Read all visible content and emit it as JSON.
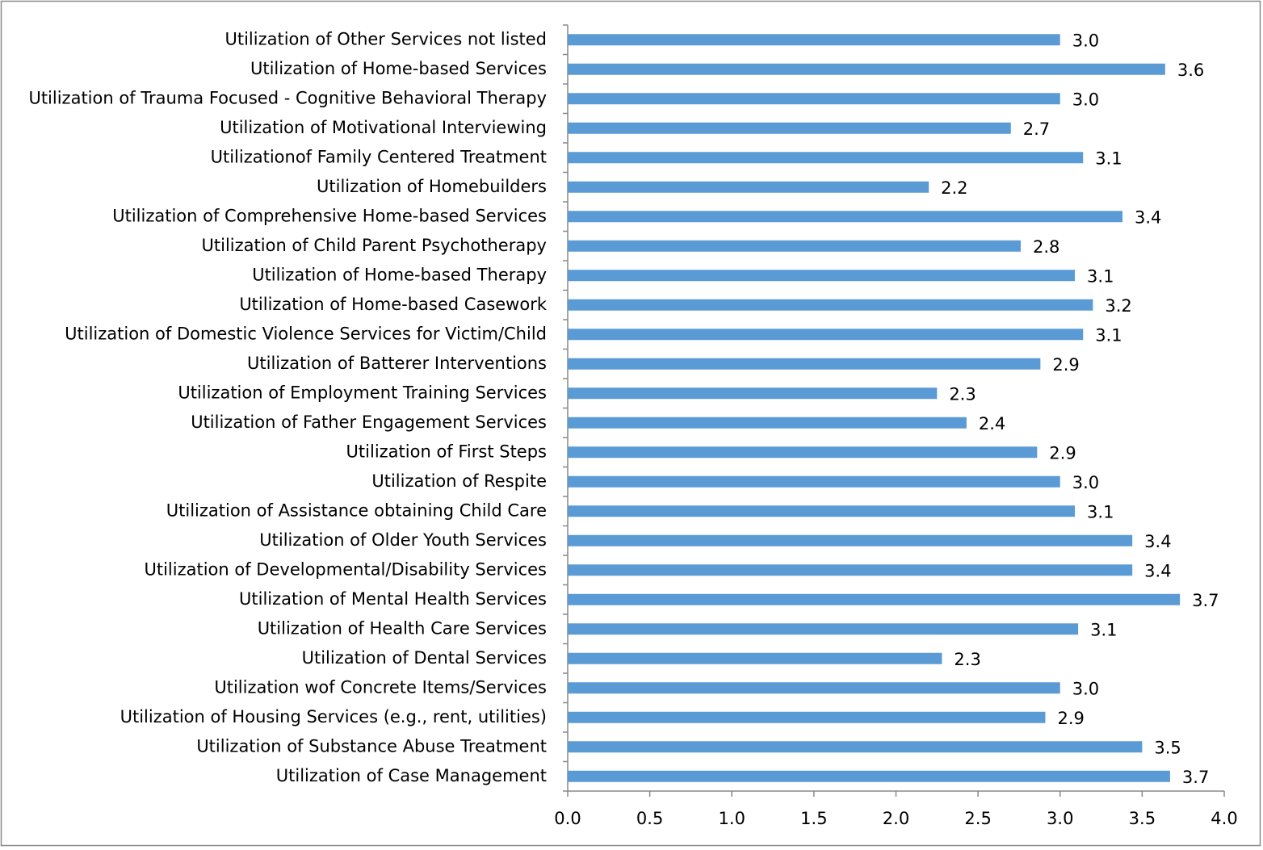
{
  "chart_data": {
    "type": "barh",
    "categories": [
      "Utilization of Other Services not listed",
      "Utilization of Home-based Services",
      "Utilization of Trauma Focused - Cognitive Behavioral Therapy",
      "Utilization of Motivational Interviewing",
      "Utilizationof Family Centered Treatment",
      "Utilization of Homebuilders",
      "Utilization of Comprehensive Home-based Services",
      "Utilization of Child Parent Psychotherapy",
      "Utilization of Home-based Therapy",
      "Utilization of Home-based Casework",
      "Utilization of Domestic Violence Services for Victim/Child",
      "Utilization of Batterer Interventions",
      "Utilization of Employment Training Services",
      "Utilization of Father Engagement Services",
      "Utilization of First Steps",
      "Utilization of Respite",
      "Utilization of Assistance obtaining Child Care",
      "Utilization of Older Youth Services",
      "Utilization of Developmental/Disability Services",
      "Utilization of Mental Health Services",
      "Utilization of Health Care Services",
      "Utilization of Dental Services",
      "Utilization wof Concrete Items/Services",
      "Utilization of Housing Services (e.g., rent, utilities)",
      "Utilization of Substance Abuse Treatment",
      "Utilization of Case Management"
    ],
    "values": [
      3.0,
      3.64,
      3.0,
      2.7,
      3.14,
      2.2,
      3.38,
      2.76,
      3.09,
      3.2,
      3.14,
      2.88,
      2.25,
      2.43,
      2.86,
      3.0,
      3.09,
      3.44,
      3.44,
      3.73,
      3.11,
      2.28,
      3.0,
      2.91,
      3.5,
      3.67
    ],
    "value_labels": [
      "3.0",
      "3.6",
      "3.0",
      "2.7",
      "3.1",
      "2.2",
      "3.4",
      "2.8",
      "3.1",
      "3.2",
      "3.1",
      "2.9",
      "2.3",
      "2.4",
      "2.9",
      "3.0",
      "3.1",
      "3.4",
      "3.4",
      "3.7",
      "3.1",
      "2.3",
      "3.0",
      "2.9",
      "3.5",
      "3.7"
    ],
    "color": "#5b9bd5",
    "xlim": [
      0,
      4
    ],
    "xticks": [
      {
        "value": 0,
        "label": "0.0"
      },
      {
        "value": 0.5,
        "label": "0.5"
      },
      {
        "value": 1,
        "label": "1.0"
      },
      {
        "value": 1.5,
        "label": "1.5"
      },
      {
        "value": 2,
        "label": "2.0"
      },
      {
        "value": 2.5,
        "label": "2.5"
      },
      {
        "value": 3,
        "label": "3.0"
      },
      {
        "value": 3.5,
        "label": "3.5"
      },
      {
        "value": 4,
        "label": "4.0"
      }
    ],
    "grid": false
  }
}
